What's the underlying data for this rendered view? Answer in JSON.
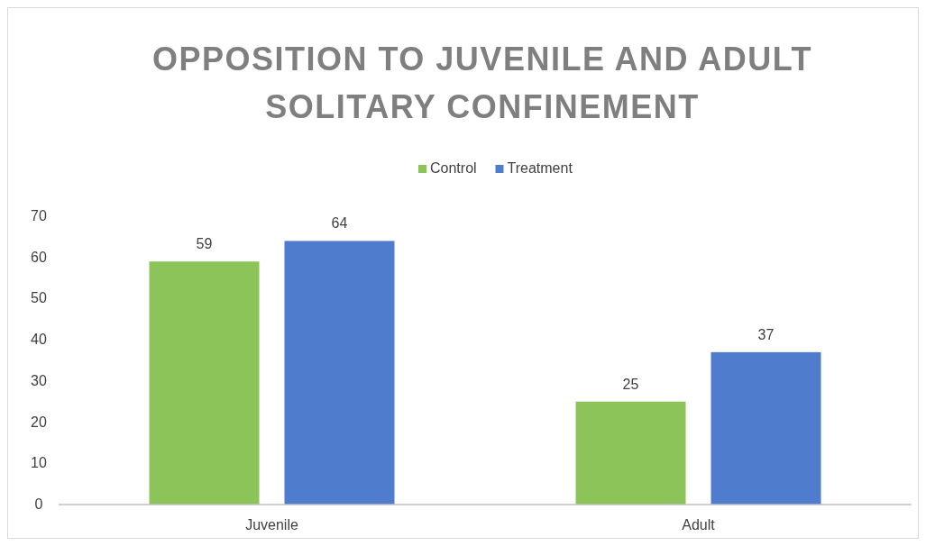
{
  "chart_data": {
    "type": "bar",
    "title": "OPPOSITION TO JUVENILE AND ADULT SOLITARY CONFINEMENT",
    "categories": [
      "Juvenile",
      "Adult"
    ],
    "series": [
      {
        "name": "Control",
        "color": "#8cc45a",
        "values": [
          59,
          25
        ]
      },
      {
        "name": "Treatment",
        "color": "#4f7ccc",
        "values": [
          64,
          37
        ]
      }
    ],
    "ylim": [
      0,
      70
    ],
    "yticks": [
      0,
      10,
      20,
      30,
      40,
      50,
      60,
      70
    ],
    "data_labels": true,
    "legend": "top",
    "grid": false
  }
}
